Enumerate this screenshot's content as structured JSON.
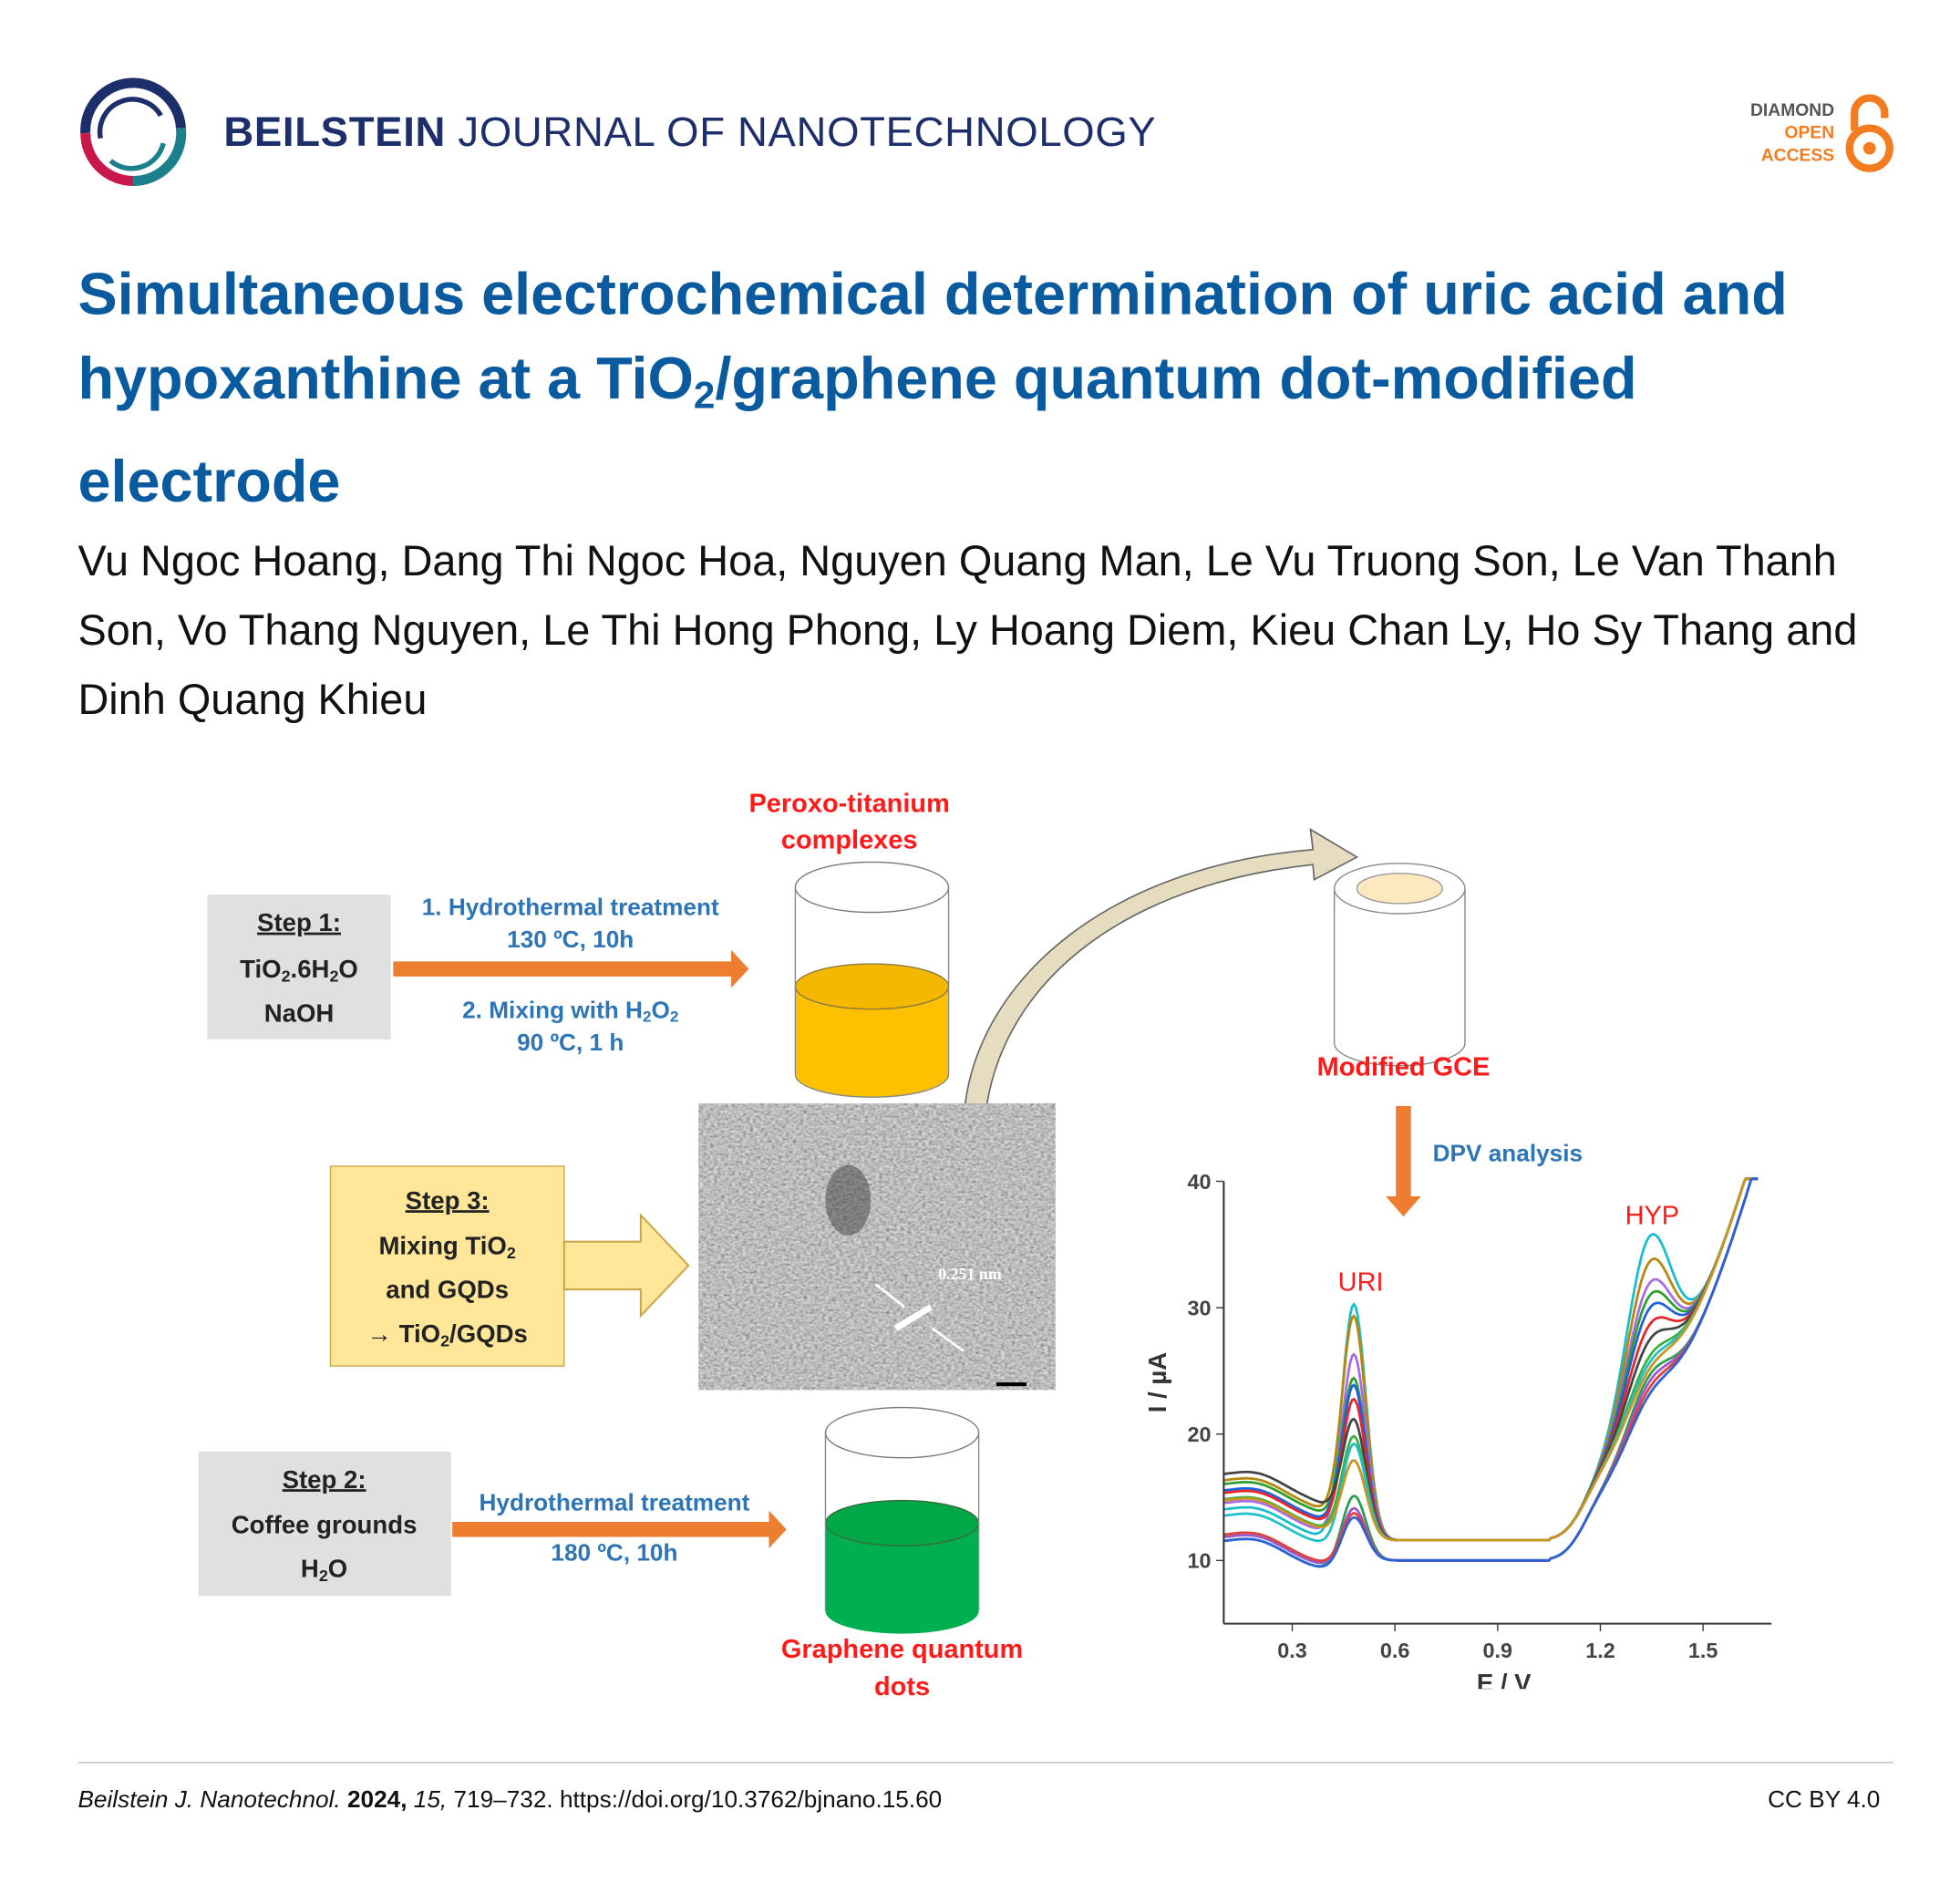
{
  "header": {
    "journal_bold": "BEILSTEIN",
    "journal_rest": "JOURNAL OF NANOTECHNOLOGY",
    "badge": {
      "line1": "DIAMOND",
      "line2": "OPEN",
      "line3": "ACCESS",
      "icon": "open-access-lock-icon"
    }
  },
  "article": {
    "title_part1": "Simultaneous electrochemical determination of uric acid and hypoxanthine at a TiO",
    "title_sub": "2",
    "title_part2": "/graphene quantum dot-modified electrode",
    "authors": "Vu Ngoc Hoang, Dang Thi Ngoc Hoa, Nguyen Quang Man, Le Vu Truong Son, Le Van Thanh Son, Vo Thang Nguyen, Le Thi Hong Phong, Ly Hoang Diem, Kieu Chan Ly, Ho Sy Thang and Dinh Quang Khieu"
  },
  "figure": {
    "step1": {
      "title": "Step 1:",
      "f1": "TiO",
      "f2": "2",
      "f3": ".6H",
      "f4": "2",
      "f5": "O",
      "line3": "NaOH"
    },
    "arrow1": {
      "a": "1. Hydrothermal treatment",
      "b": "130 ºC, 10h",
      "c1": "2. Mixing with H",
      "c2": "2",
      "c3": "O",
      "c4": "2",
      "d": "90 ºC, 1 h"
    },
    "peroxo": {
      "l1": "Peroxo-titanium",
      "l2": "complexes"
    },
    "gce": "Modified GCE",
    "dpv": "DPV analysis",
    "step3": {
      "title": "Step 3:",
      "m1": "Mixing TiO",
      "m2": "2",
      "l3": "and GQDs",
      "r1": "→ TiO",
      "r2": "2",
      "r3": "/GQDs"
    },
    "tem_label": "0.251 nm",
    "step2": {
      "title": "Step 2:",
      "l2": "Coffee grounds",
      "h1": "H",
      "h2": "2",
      "h3": "O"
    },
    "arrow2": {
      "a": "Hydrothermal treatment",
      "b": "180 ºC, 10h"
    },
    "gqd": {
      "l1": "Graphene quantum",
      "l2": "dots"
    },
    "colors": {
      "orange": "#ed7d31",
      "yellow_liquid": "#ffc000",
      "green_liquid": "#00b050",
      "step3_fill": "#ffe699"
    }
  },
  "chart_data": {
    "type": "line",
    "title": "",
    "xlabel": "E / V",
    "ylabel": "I / µA",
    "xlim": [
      0.1,
      1.7
    ],
    "ylim": [
      5,
      40
    ],
    "xticks": [
      "0.3",
      "0.6",
      "0.9",
      "1.2",
      "1.5"
    ],
    "yticks": [
      "10",
      "20",
      "30",
      "40"
    ],
    "annotations": [
      "URI",
      "HYP"
    ],
    "peak_positions_V": {
      "URI": 0.48,
      "HYP": 1.34
    },
    "series": [
      {
        "color": "#17becf",
        "baseline": 13.5,
        "uri_peak": 30.3,
        "hyp_peak": 35.5
      },
      {
        "color": "#b8860b",
        "baseline": 15.8,
        "uri_peak": 29.2,
        "hyp_peak": 33.5
      },
      {
        "color": "#a86be8",
        "baseline": 14.0,
        "uri_peak": 26.3,
        "hyp_peak": 31.8
      },
      {
        "color": "#2ca02c",
        "baseline": 15.5,
        "uri_peak": 24.3,
        "hyp_peak": 30.8
      },
      {
        "color": "#1f5fe0",
        "baseline": 15.0,
        "uri_peak": 23.8,
        "hyp_peak": 29.8
      },
      {
        "color": "#e8262a",
        "baseline": 14.8,
        "uri_peak": 22.7,
        "hyp_peak": 28.5
      },
      {
        "color": "#444444",
        "baseline": 16.3,
        "uri_peak": 21.0,
        "hyp_peak": 27.3
      },
      {
        "color": "#3cb043",
        "baseline": 14.3,
        "uri_peak": 19.8,
        "hyp_peak": 26.0
      },
      {
        "color": "#20c0c8",
        "baseline": 13.0,
        "uri_peak": 19.3,
        "hyp_peak": 25.5
      },
      {
        "color": "#c8961e",
        "baseline": 14.2,
        "uri_peak": 17.9,
        "hyp_peak": 25.0
      },
      {
        "color": "#2e9e4e",
        "baseline": 11.0,
        "uri_peak": 15.2,
        "hyp_peak": 24.5
      },
      {
        "color": "#9b59d0",
        "baseline": 11.3,
        "uri_peak": 14.2,
        "hyp_peak": 24.0
      },
      {
        "color": "#e0403a",
        "baseline": 11.5,
        "uri_peak": 13.8,
        "hyp_peak": 23.5
      },
      {
        "color": "#2a62d8",
        "baseline": 11.0,
        "uri_peak": 13.5,
        "hyp_peak": 23.0
      }
    ]
  },
  "footer": {
    "journal": "Beilstein J. Nanotechnol.",
    "year": "2024,",
    "volume": "15,",
    "pages_doi": "719–732. https://doi.org/10.3762/bjnano.15.60",
    "license": "CC BY 4.0"
  }
}
